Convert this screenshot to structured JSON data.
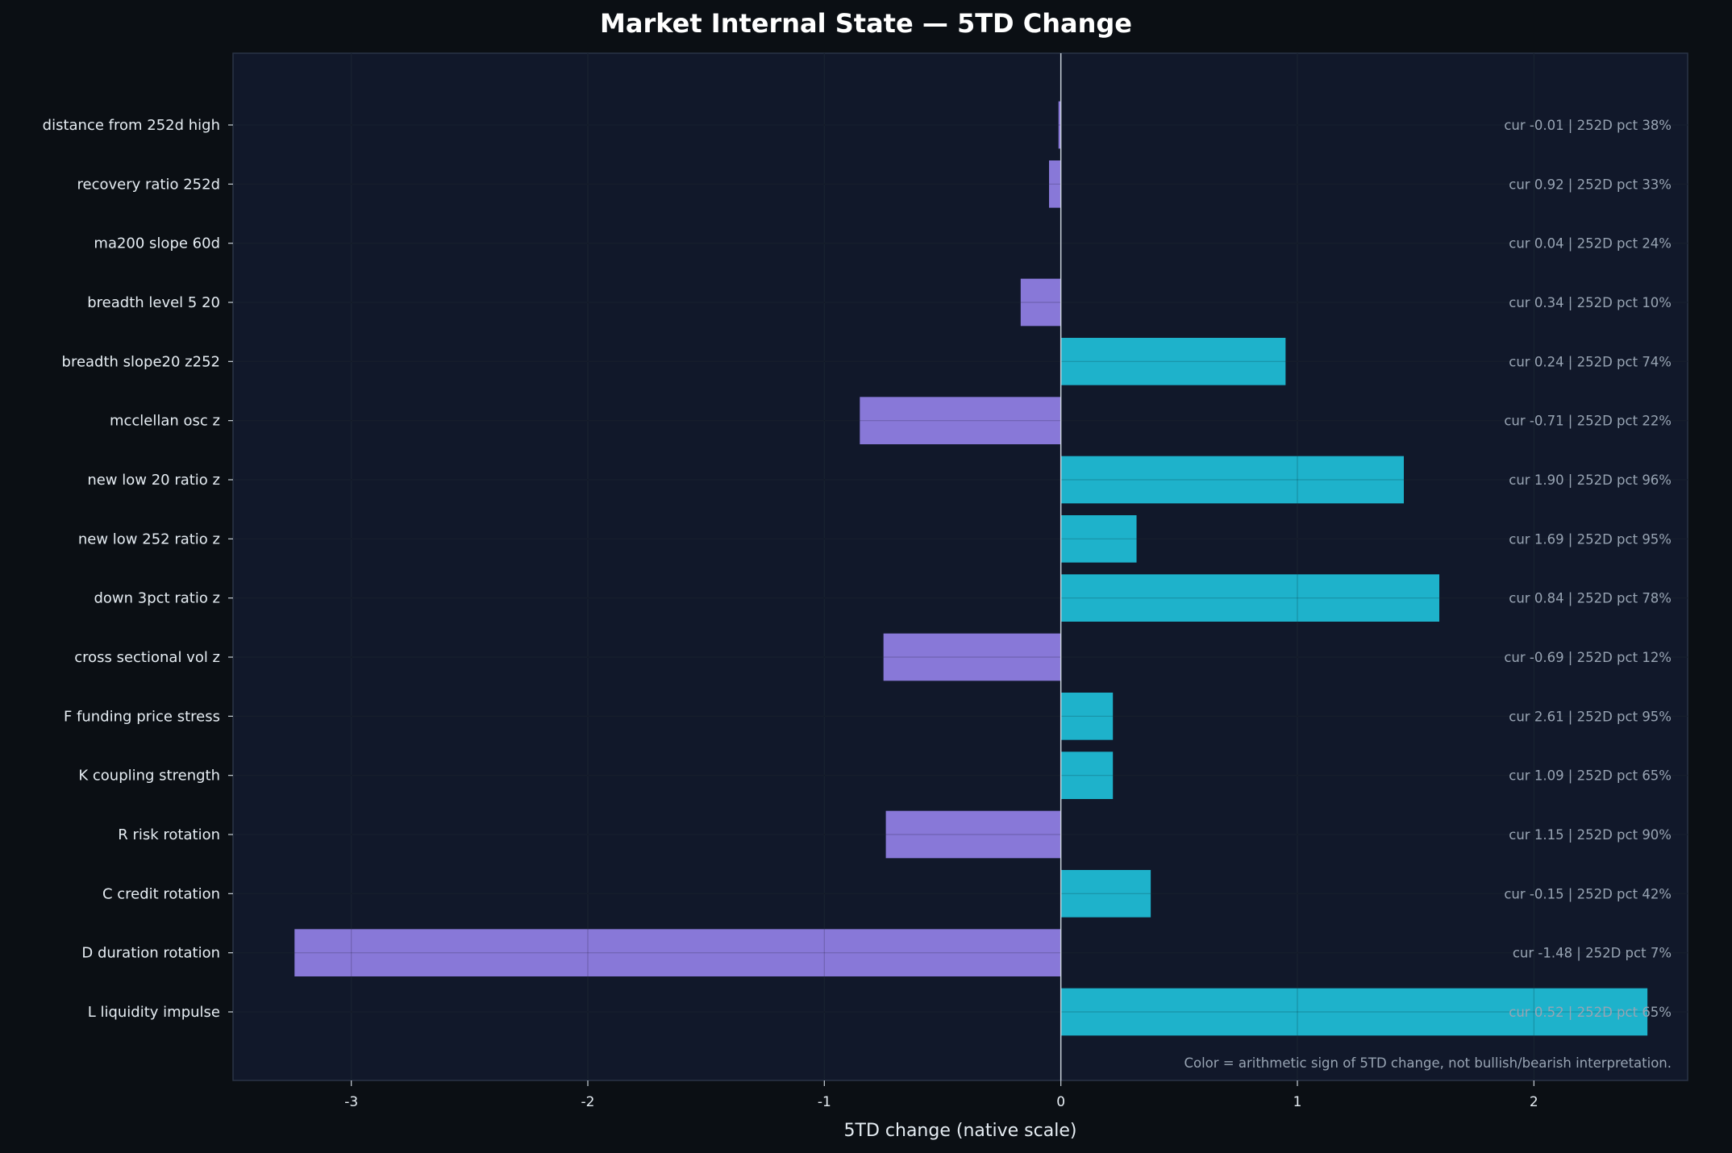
{
  "chart_data": {
    "type": "bar",
    "orientation": "horizontal",
    "title": "Market Internal State — 5TD Change",
    "xlabel": "5TD change (native scale)",
    "ylabel": "",
    "xlim": [
      -3.5,
      2.65
    ],
    "xticks": [
      -3,
      -2,
      -1,
      0,
      1,
      2
    ],
    "grid": true,
    "colors": {
      "positive": "#1eb2cb",
      "negative": "#8878d8",
      "background": "#11182a",
      "figure": "#0b0f14"
    },
    "categories": [
      "distance from 252d high",
      "recovery ratio 252d",
      "ma200 slope 60d",
      "breadth level 5 20",
      "breadth slope20 z252",
      "mcclellan osc z",
      "new low 20 ratio z",
      "new low 252 ratio z",
      "down 3pct ratio z",
      "cross sectional vol z",
      "F funding price stress",
      "K coupling strength",
      "R risk rotation",
      "C credit rotation",
      "D duration rotation",
      "L liquidity impulse"
    ],
    "values": [
      -0.01,
      -0.05,
      0.0,
      -0.17,
      0.95,
      -0.85,
      1.45,
      0.32,
      1.6,
      -0.75,
      0.22,
      0.22,
      -0.74,
      0.38,
      -3.24,
      2.48
    ],
    "annotations": [
      "cur -0.01 | 252D pct 38%",
      "cur 0.92 | 252D pct 33%",
      "cur 0.04 | 252D pct 24%",
      "cur 0.34 | 252D pct 10%",
      "cur 0.24 | 252D pct 74%",
      "cur -0.71 | 252D pct 22%",
      "cur 1.90 | 252D pct 96%",
      "cur 1.69 | 252D pct 95%",
      "cur 0.84 | 252D pct 78%",
      "cur -0.69 | 252D pct 12%",
      "cur 2.61 | 252D pct 95%",
      "cur 1.09 | 252D pct 65%",
      "cur 1.15 | 252D pct 90%",
      "cur -0.15 | 252D pct 42%",
      "cur -1.48 | 252D pct 7%",
      "cur 0.52 | 252D pct 65%"
    ],
    "footnote": "Color = arithmetic sign of 5TD change, not bullish/bearish interpretation."
  }
}
